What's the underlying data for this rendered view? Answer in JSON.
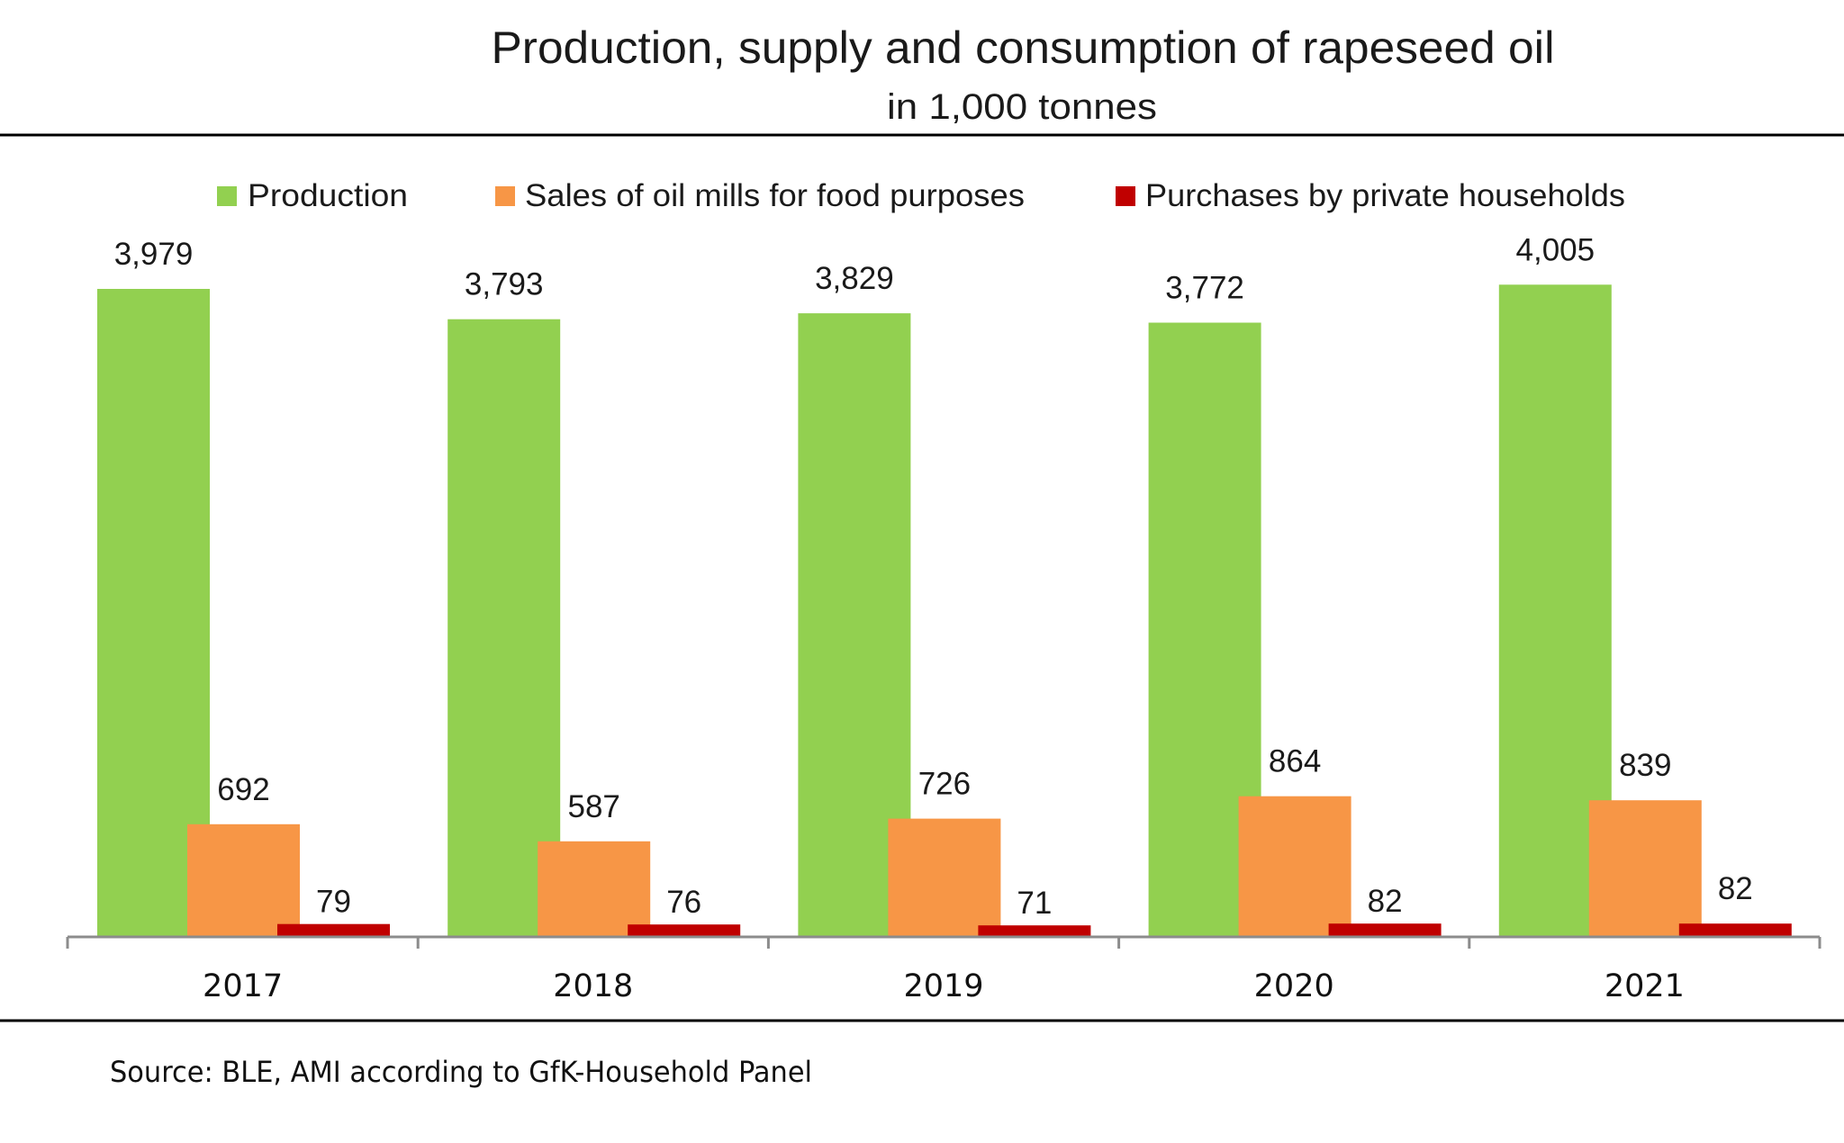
{
  "chart_data": {
    "type": "bar",
    "title": "Production, supply and consumption of rapeseed oil",
    "subtitle": "in 1,000 tonnes",
    "xlabel": "",
    "ylabel": "",
    "unit": "1,000 tonnes",
    "categories": [
      "2017",
      "2018",
      "2019",
      "2020",
      "2021"
    ],
    "series": [
      {
        "name": "Production",
        "color": "#92D050",
        "values": [
          3979,
          3793,
          3829,
          3772,
          4005
        ],
        "labels": [
          "3,979",
          "3,793",
          "3,829",
          "3,772",
          "4,005"
        ]
      },
      {
        "name": "Sales of oil mills for food purposes",
        "color": "#F79646",
        "values": [
          692,
          587,
          726,
          864,
          839
        ],
        "labels": [
          "692",
          "587",
          "726",
          "864",
          "839"
        ]
      },
      {
        "name": "Purchases by private households",
        "color": "#C00000",
        "values": [
          79,
          76,
          71,
          82,
          82
        ],
        "labels": [
          "79",
          "76",
          "71",
          "82",
          "82"
        ]
      }
    ],
    "ylim": [
      0,
      4005
    ],
    "grid": false,
    "y_axis_visible": false,
    "data_labels": true,
    "legend": "top-center",
    "source": "Source: BLE, AMI according to GfK-Household Panel"
  },
  "colors": {
    "axis": "#8C8C8C",
    "rule": "#000000",
    "text": "#1a1a1a"
  }
}
